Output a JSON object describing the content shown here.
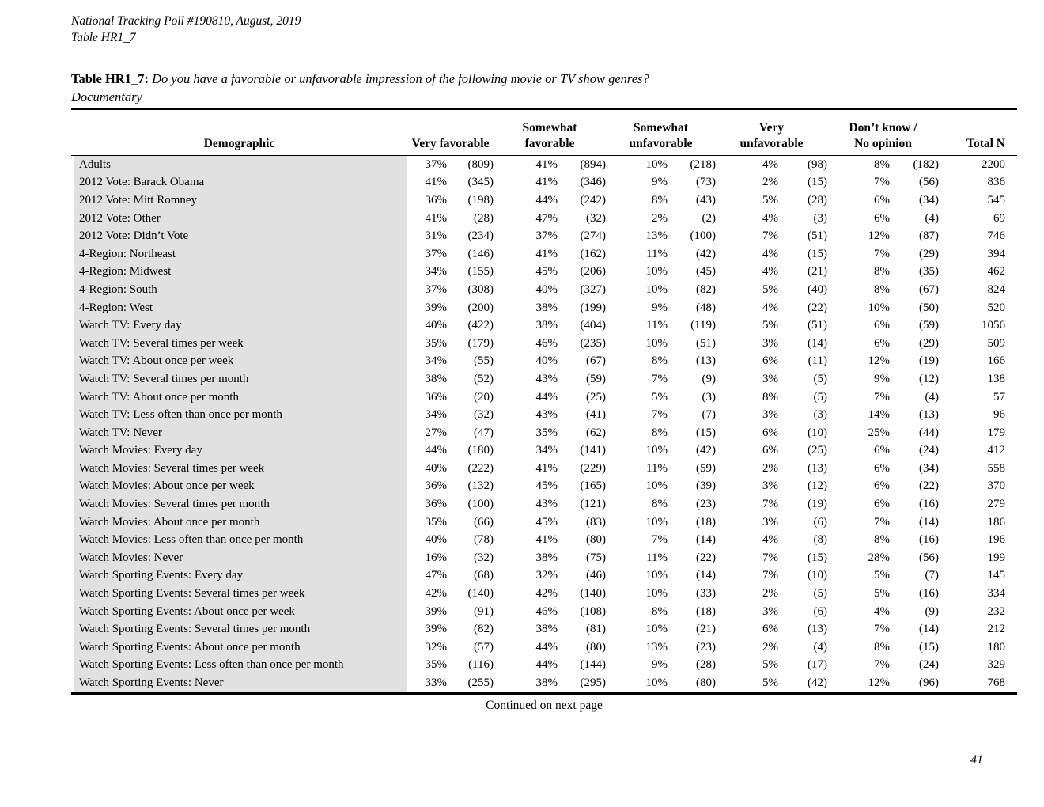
{
  "meta": {
    "poll_line": "National Tracking Poll #190810, August, 2019",
    "table_line": "Table HR1_7"
  },
  "title": {
    "label": "Table HR1_7:",
    "question": "Do you have a favorable or unfavorable impression of the following movie or TV show genres?",
    "subject": "Documentary"
  },
  "table": {
    "demographic_header": "Demographic",
    "col_groups": [
      {
        "line1": "",
        "line2": "Very favorable"
      },
      {
        "line1": "Somewhat",
        "line2": "favorable"
      },
      {
        "line1": "Somewhat",
        "line2": "unfavorable"
      },
      {
        "line1": "Very",
        "line2": "unfavorable"
      },
      {
        "line1": "Don’t know /",
        "line2": "No opinion"
      },
      {
        "line1": "",
        "line2": "Total N"
      }
    ],
    "rows": [
      {
        "label": "Adults",
        "cells": [
          "37%",
          "(809)",
          "41%",
          "(894)",
          "10%",
          "(218)",
          "4%",
          "(98)",
          "8%",
          "(182)",
          "2200"
        ]
      },
      {
        "label": "2012 Vote: Barack Obama",
        "cells": [
          "41%",
          "(345)",
          "41%",
          "(346)",
          "9%",
          "(73)",
          "2%",
          "(15)",
          "7%",
          "(56)",
          "836"
        ]
      },
      {
        "label": "2012 Vote: Mitt Romney",
        "cells": [
          "36%",
          "(198)",
          "44%",
          "(242)",
          "8%",
          "(43)",
          "5%",
          "(28)",
          "6%",
          "(34)",
          "545"
        ]
      },
      {
        "label": "2012 Vote: Other",
        "cells": [
          "41%",
          "(28)",
          "47%",
          "(32)",
          "2%",
          "(2)",
          "4%",
          "(3)",
          "6%",
          "(4)",
          "69"
        ]
      },
      {
        "label": "2012 Vote: Didn’t Vote",
        "cells": [
          "31%",
          "(234)",
          "37%",
          "(274)",
          "13%",
          "(100)",
          "7%",
          "(51)",
          "12%",
          "(87)",
          "746"
        ]
      },
      {
        "label": "4-Region: Northeast",
        "cells": [
          "37%",
          "(146)",
          "41%",
          "(162)",
          "11%",
          "(42)",
          "4%",
          "(15)",
          "7%",
          "(29)",
          "394"
        ]
      },
      {
        "label": "4-Region: Midwest",
        "cells": [
          "34%",
          "(155)",
          "45%",
          "(206)",
          "10%",
          "(45)",
          "4%",
          "(21)",
          "8%",
          "(35)",
          "462"
        ]
      },
      {
        "label": "4-Region: South",
        "cells": [
          "37%",
          "(308)",
          "40%",
          "(327)",
          "10%",
          "(82)",
          "5%",
          "(40)",
          "8%",
          "(67)",
          "824"
        ]
      },
      {
        "label": "4-Region: West",
        "cells": [
          "39%",
          "(200)",
          "38%",
          "(199)",
          "9%",
          "(48)",
          "4%",
          "(22)",
          "10%",
          "(50)",
          "520"
        ]
      },
      {
        "label": "Watch TV: Every day",
        "cells": [
          "40%",
          "(422)",
          "38%",
          "(404)",
          "11%",
          "(119)",
          "5%",
          "(51)",
          "6%",
          "(59)",
          "1056"
        ]
      },
      {
        "label": "Watch TV: Several times per week",
        "cells": [
          "35%",
          "(179)",
          "46%",
          "(235)",
          "10%",
          "(51)",
          "3%",
          "(14)",
          "6%",
          "(29)",
          "509"
        ]
      },
      {
        "label": "Watch TV: About once per week",
        "cells": [
          "34%",
          "(55)",
          "40%",
          "(67)",
          "8%",
          "(13)",
          "6%",
          "(11)",
          "12%",
          "(19)",
          "166"
        ]
      },
      {
        "label": "Watch TV: Several times per month",
        "cells": [
          "38%",
          "(52)",
          "43%",
          "(59)",
          "7%",
          "(9)",
          "3%",
          "(5)",
          "9%",
          "(12)",
          "138"
        ]
      },
      {
        "label": "Watch TV: About once per month",
        "cells": [
          "36%",
          "(20)",
          "44%",
          "(25)",
          "5%",
          "(3)",
          "8%",
          "(5)",
          "7%",
          "(4)",
          "57"
        ]
      },
      {
        "label": "Watch TV: Less often than once per month",
        "cells": [
          "34%",
          "(32)",
          "43%",
          "(41)",
          "7%",
          "(7)",
          "3%",
          "(3)",
          "14%",
          "(13)",
          "96"
        ]
      },
      {
        "label": "Watch TV: Never",
        "cells": [
          "27%",
          "(47)",
          "35%",
          "(62)",
          "8%",
          "(15)",
          "6%",
          "(10)",
          "25%",
          "(44)",
          "179"
        ]
      },
      {
        "label": "Watch Movies: Every day",
        "cells": [
          "44%",
          "(180)",
          "34%",
          "(141)",
          "10%",
          "(42)",
          "6%",
          "(25)",
          "6%",
          "(24)",
          "412"
        ]
      },
      {
        "label": "Watch Movies: Several times per week",
        "cells": [
          "40%",
          "(222)",
          "41%",
          "(229)",
          "11%",
          "(59)",
          "2%",
          "(13)",
          "6%",
          "(34)",
          "558"
        ]
      },
      {
        "label": "Watch Movies: About once per week",
        "cells": [
          "36%",
          "(132)",
          "45%",
          "(165)",
          "10%",
          "(39)",
          "3%",
          "(12)",
          "6%",
          "(22)",
          "370"
        ]
      },
      {
        "label": "Watch Movies: Several times per month",
        "cells": [
          "36%",
          "(100)",
          "43%",
          "(121)",
          "8%",
          "(23)",
          "7%",
          "(19)",
          "6%",
          "(16)",
          "279"
        ]
      },
      {
        "label": "Watch Movies: About once per month",
        "cells": [
          "35%",
          "(66)",
          "45%",
          "(83)",
          "10%",
          "(18)",
          "3%",
          "(6)",
          "7%",
          "(14)",
          "186"
        ]
      },
      {
        "label": "Watch Movies: Less often than once per month",
        "cells": [
          "40%",
          "(78)",
          "41%",
          "(80)",
          "7%",
          "(14)",
          "4%",
          "(8)",
          "8%",
          "(16)",
          "196"
        ]
      },
      {
        "label": "Watch Movies: Never",
        "cells": [
          "16%",
          "(32)",
          "38%",
          "(75)",
          "11%",
          "(22)",
          "7%",
          "(15)",
          "28%",
          "(56)",
          "199"
        ]
      },
      {
        "label": "Watch Sporting Events: Every day",
        "cells": [
          "47%",
          "(68)",
          "32%",
          "(46)",
          "10%",
          "(14)",
          "7%",
          "(10)",
          "5%",
          "(7)",
          "145"
        ]
      },
      {
        "label": "Watch Sporting Events: Several times per week",
        "cells": [
          "42%",
          "(140)",
          "42%",
          "(140)",
          "10%",
          "(33)",
          "2%",
          "(5)",
          "5%",
          "(16)",
          "334"
        ]
      },
      {
        "label": "Watch Sporting Events: About once per week",
        "cells": [
          "39%",
          "(91)",
          "46%",
          "(108)",
          "8%",
          "(18)",
          "3%",
          "(6)",
          "4%",
          "(9)",
          "232"
        ]
      },
      {
        "label": "Watch Sporting Events: Several times per month",
        "cells": [
          "39%",
          "(82)",
          "38%",
          "(81)",
          "10%",
          "(21)",
          "6%",
          "(13)",
          "7%",
          "(14)",
          "212"
        ]
      },
      {
        "label": "Watch Sporting Events: About once per month",
        "cells": [
          "32%",
          "(57)",
          "44%",
          "(80)",
          "13%",
          "(23)",
          "2%",
          "(4)",
          "8%",
          "(15)",
          "180"
        ]
      },
      {
        "label": "Watch Sporting Events: Less often than once per month",
        "cells": [
          "35%",
          "(116)",
          "44%",
          "(144)",
          "9%",
          "(28)",
          "5%",
          "(17)",
          "7%",
          "(24)",
          "329"
        ]
      },
      {
        "label": "Watch Sporting Events: Never",
        "cells": [
          "33%",
          "(255)",
          "38%",
          "(295)",
          "10%",
          "(80)",
          "5%",
          "(42)",
          "12%",
          "(96)",
          "768"
        ]
      }
    ]
  },
  "footer": {
    "continued": "Continued on next page",
    "page_number": "41"
  },
  "colors": {
    "label_bg": "#e1e1e1",
    "rule": "#000000",
    "text": "#000000",
    "page_bg": "#ffffff"
  }
}
